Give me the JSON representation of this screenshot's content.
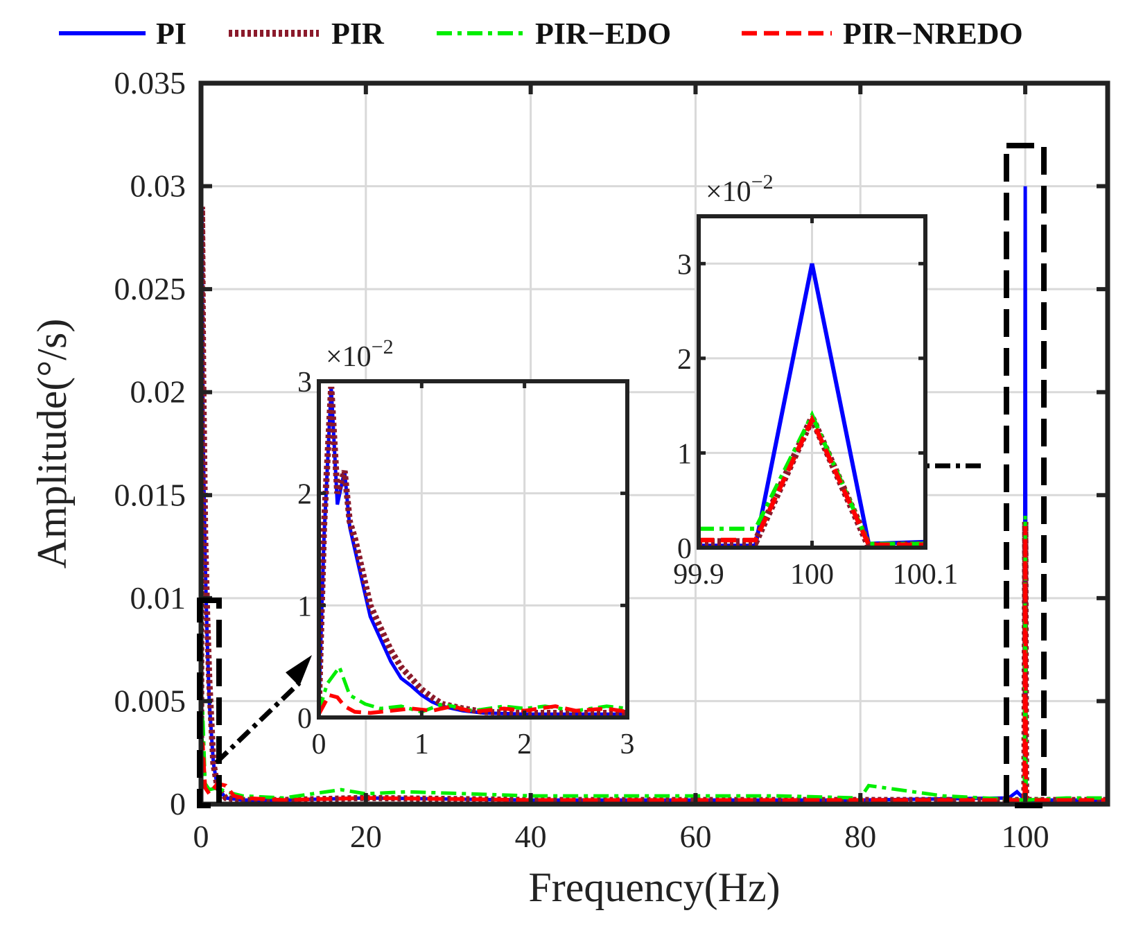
{
  "colors": {
    "PI": "#0000ff",
    "PIR": "#8b1a2b",
    "PIR-EDO": "#00ee00",
    "PIR-NREDO": "#ff0000",
    "grid": "#d9d9d9",
    "frame": "#222222"
  },
  "legend": {
    "position": "top",
    "entries": [
      {
        "name": "PI",
        "style": "solid"
      },
      {
        "name": "PIR",
        "style": "dotted"
      },
      {
        "name": "PIR−EDO",
        "style": "dashdot"
      },
      {
        "name": "PIR−NREDO",
        "style": "dashed"
      }
    ]
  },
  "chart_data": [
    {
      "id": "main",
      "type": "line",
      "title": "",
      "xlabel": "Frequency(Hz)",
      "ylabel": "Amplitude(°/s)",
      "xlim": [
        0,
        110
      ],
      "ylim": [
        0,
        0.035
      ],
      "xticks": [
        0,
        20,
        40,
        60,
        80,
        100
      ],
      "xtick_labels": [
        "0",
        "20",
        "40",
        "60",
        "80",
        "100"
      ],
      "yticks": [
        0,
        0.005,
        0.01,
        0.015,
        0.02,
        0.025,
        0.03,
        0.035
      ],
      "ytick_labels": [
        "0",
        "0.005",
        "0.01",
        "0.015",
        "0.02",
        "0.025",
        "0.03",
        "0.035"
      ],
      "grid": true,
      "series": [
        {
          "name": "PI",
          "x": [
            0,
            0.12,
            0.25,
            0.5,
            0.75,
            1,
            1.5,
            2,
            3,
            5,
            10,
            20,
            40,
            60,
            80,
            98,
            99,
            99.5,
            99.9,
            100,
            100.1,
            100.5,
            101,
            105,
            110
          ],
          "y": [
            0.002,
            0.029,
            0.018,
            0.012,
            0.008,
            0.005,
            0.002,
            0.0008,
            0.0003,
            0.0002,
            0.0002,
            0.0003,
            0.0002,
            0.0002,
            0.0002,
            0.0003,
            0.0006,
            0.0004,
            0.0002,
            0.03,
            0.0002,
            0.0002,
            0.0002,
            0.0002,
            0.0002
          ]
        },
        {
          "name": "PIR",
          "x": [
            0,
            0.12,
            0.25,
            0.5,
            0.75,
            1,
            1.5,
            2,
            3,
            5,
            10,
            20,
            40,
            60,
            80,
            99.9,
            100,
            100.1,
            105,
            110
          ],
          "y": [
            0.002,
            0.029,
            0.021,
            0.013,
            0.009,
            0.006,
            0.002,
            0.0008,
            0.0003,
            0.0002,
            0.0002,
            0.0003,
            0.0002,
            0.0002,
            0.0002,
            0.0002,
            0.0137,
            0.0002,
            0.0002,
            0.0002
          ]
        },
        {
          "name": "PIR−EDO",
          "x": [
            0,
            0.2,
            0.5,
            1,
            2,
            3,
            5,
            10,
            17,
            20,
            25,
            40,
            60,
            70,
            80,
            81,
            90,
            99.9,
            100,
            100.1,
            105,
            110
          ],
          "y": [
            0.0005,
            0.0045,
            0.001,
            0.0007,
            0.0008,
            0.0006,
            0.0004,
            0.0003,
            0.0007,
            0.0005,
            0.0006,
            0.0004,
            0.0004,
            0.0004,
            0.0003,
            0.0009,
            0.0004,
            0.0002,
            0.014,
            0.0002,
            0.0003,
            0.0003
          ]
        },
        {
          "name": "PIR−NREDO",
          "x": [
            0,
            0.2,
            0.5,
            1,
            2,
            3,
            4,
            5,
            10,
            20,
            40,
            60,
            80,
            99.9,
            100,
            100.1,
            105,
            110
          ],
          "y": [
            0.0005,
            0.003,
            0.0008,
            0.0005,
            0.001,
            0.0009,
            0.0004,
            0.0003,
            0.0002,
            0.0003,
            0.0002,
            0.0002,
            0.0002,
            0.0002,
            0.0135,
            0.0002,
            0.0002,
            0.0002
          ]
        }
      ],
      "annotations": [
        {
          "type": "dashed-box",
          "around": "x 0 to 2, y 0 to 0.01"
        },
        {
          "type": "dashed-box",
          "around": "x 98.5 to 102, y 0 to 0.032"
        },
        {
          "type": "arrow",
          "from": "low-frequency box",
          "to": "inset 1"
        },
        {
          "type": "arrow",
          "from": "100 Hz box",
          "to": "inset 2"
        }
      ]
    },
    {
      "id": "inset1",
      "type": "line",
      "title": "",
      "xlabel": "",
      "ylabel": "",
      "multiplier": "×10",
      "multiplier_exp": "−2",
      "xlim": [
        0,
        3
      ],
      "ylim": [
        0,
        3
      ],
      "xticks": [
        0,
        1,
        2,
        3
      ],
      "xtick_labels": [
        "0",
        "1",
        "2",
        "3"
      ],
      "yticks": [
        0,
        1,
        2,
        3
      ],
      "ytick_labels": [
        "0",
        "1",
        "2",
        "3"
      ],
      "grid": true,
      "series": [
        {
          "name": "PI",
          "x": [
            0,
            0.05,
            0.12,
            0.18,
            0.25,
            0.3,
            0.35,
            0.4,
            0.5,
            0.6,
            0.7,
            0.8,
            0.9,
            1.0,
            1.1,
            1.2,
            1.4,
            1.6,
            2.0,
            2.5,
            3.0
          ],
          "y": [
            0.1,
            1.6,
            2.95,
            1.9,
            2.2,
            1.7,
            1.5,
            1.3,
            0.9,
            0.7,
            0.5,
            0.35,
            0.28,
            0.2,
            0.14,
            0.1,
            0.06,
            0.04,
            0.03,
            0.03,
            0.03
          ]
        },
        {
          "name": "PIR",
          "x": [
            0,
            0.05,
            0.12,
            0.18,
            0.25,
            0.3,
            0.35,
            0.4,
            0.5,
            0.6,
            0.7,
            0.8,
            0.9,
            1.0,
            1.1,
            1.2,
            1.4,
            1.6,
            2.0,
            2.5,
            3.0
          ],
          "y": [
            0.1,
            1.7,
            2.95,
            2.0,
            2.2,
            1.75,
            1.6,
            1.4,
            1.0,
            0.8,
            0.6,
            0.45,
            0.35,
            0.25,
            0.18,
            0.12,
            0.08,
            0.05,
            0.04,
            0.04,
            0.04
          ]
        },
        {
          "name": "PIR−EDO",
          "x": [
            0,
            0.08,
            0.2,
            0.3,
            0.45,
            0.6,
            0.8,
            1.0,
            1.2,
            1.5,
            1.8,
            2.0,
            2.2,
            2.5,
            2.8,
            3.0
          ],
          "y": [
            0.05,
            0.3,
            0.45,
            0.2,
            0.12,
            0.08,
            0.1,
            0.05,
            0.12,
            0.06,
            0.1,
            0.08,
            0.1,
            0.06,
            0.1,
            0.08
          ]
        },
        {
          "name": "PIR−NREDO",
          "x": [
            0,
            0.1,
            0.18,
            0.25,
            0.35,
            0.5,
            0.7,
            0.9,
            1.1,
            1.3,
            1.5,
            1.8,
            2.0,
            2.3,
            2.5,
            2.8,
            3.0
          ],
          "y": [
            0.03,
            0.2,
            0.18,
            0.1,
            0.05,
            0.04,
            0.06,
            0.08,
            0.06,
            0.1,
            0.05,
            0.08,
            0.06,
            0.1,
            0.06,
            0.08,
            0.05
          ]
        }
      ]
    },
    {
      "id": "inset2",
      "type": "line",
      "title": "",
      "xlabel": "",
      "ylabel": "",
      "multiplier": "×10",
      "multiplier_exp": "−2",
      "xlim": [
        99.9,
        100.1
      ],
      "ylim": [
        0,
        3.5
      ],
      "xticks": [
        99.9,
        100,
        100.1
      ],
      "xtick_labels": [
        "99.9",
        "100",
        "100.1"
      ],
      "yticks": [
        0,
        1,
        2,
        3
      ],
      "ytick_labels": [
        "0",
        "1",
        "2",
        "3"
      ],
      "grid": true,
      "series": [
        {
          "name": "PI",
          "x": [
            99.9,
            99.95,
            100,
            100.05,
            100.1
          ],
          "y": [
            0.02,
            0.02,
            3.0,
            0.04,
            0.06
          ]
        },
        {
          "name": "PIR",
          "x": [
            99.9,
            99.95,
            100,
            100.05,
            100.1
          ],
          "y": [
            0.06,
            0.06,
            1.37,
            0.02,
            0.03
          ]
        },
        {
          "name": "PIR−EDO",
          "x": [
            99.9,
            99.95,
            100,
            100.05,
            100.1
          ],
          "y": [
            0.2,
            0.2,
            1.4,
            0.04,
            0.04
          ]
        },
        {
          "name": "PIR−NREDO",
          "x": [
            99.9,
            99.95,
            100,
            100.05,
            100.1
          ],
          "y": [
            0.08,
            0.08,
            1.35,
            0.03,
            0.03
          ]
        }
      ]
    }
  ]
}
